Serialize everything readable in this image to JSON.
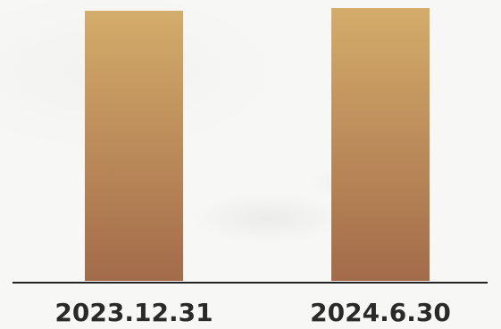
{
  "chart_data": {
    "type": "bar",
    "categories": [
      "2023.12.31",
      "2024.6.30"
    ],
    "values": [
      100,
      101
    ],
    "ylim": [
      0,
      102
    ],
    "grid": false,
    "colors": {
      "bar_top": "#d4ac6a",
      "bar_bottom": "#a36b4a",
      "axis": "#222222",
      "text": "#2a2a2a"
    }
  }
}
